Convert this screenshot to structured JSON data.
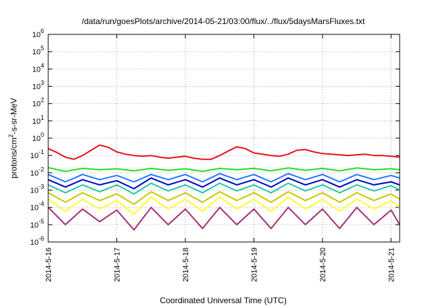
{
  "chart_data": {
    "type": "line",
    "title": "/data/run/goesPlots/archive/2014-05-21/03:00/flux/../flux/5daysMarsFluxes.txt",
    "xlabel": "Coordinated Universal Time (UTC)",
    "ylabel": "protons/cm2-s-sr-MeV",
    "yscale": "log",
    "ylim": [
      1e-06,
      1000000.0
    ],
    "y_tick_exponents": [
      -6,
      -5,
      -4,
      -3,
      -2,
      -1,
      0,
      1,
      2,
      3,
      4,
      5,
      6
    ],
    "xlim": [
      "2014-05-16",
      "2014-05-21 03:00"
    ],
    "x_ticks": [
      "2014-5-16",
      "2014-5-17",
      "2014-5-18",
      "2014-5-19",
      "2014-5-20",
      "2014-5-21"
    ],
    "grid": true,
    "series": [
      {
        "color": "#e8101a",
        "x": [
          "2014-05-16 00:00",
          "2014-05-16 03:00",
          "2014-05-16 06:00",
          "2014-05-16 09:00",
          "2014-05-16 12:00",
          "2014-05-16 15:00",
          "2014-05-16 18:00",
          "2014-05-16 21:00",
          "2014-05-17 00:00",
          "2014-05-17 03:00",
          "2014-05-17 06:00",
          "2014-05-17 09:00",
          "2014-05-17 12:00",
          "2014-05-17 15:00",
          "2014-05-17 18:00",
          "2014-05-17 21:00",
          "2014-05-18 00:00",
          "2014-05-18 03:00",
          "2014-05-18 06:00",
          "2014-05-18 09:00",
          "2014-05-18 12:00",
          "2014-05-18 15:00",
          "2014-05-18 18:00",
          "2014-05-18 21:00",
          "2014-05-19 00:00",
          "2014-05-19 03:00",
          "2014-05-19 06:00",
          "2014-05-19 09:00",
          "2014-05-19 12:00",
          "2014-05-19 15:00",
          "2014-05-19 18:00",
          "2014-05-19 21:00",
          "2014-05-20 00:00",
          "2014-05-20 03:00",
          "2014-05-20 06:00",
          "2014-05-20 09:00",
          "2014-05-20 12:00",
          "2014-05-20 15:00",
          "2014-05-20 18:00",
          "2014-05-20 21:00",
          "2014-05-21 00:00",
          "2014-05-21 03:00"
        ],
        "values": [
          0.25,
          0.15,
          0.08,
          0.06,
          0.1,
          0.2,
          0.4,
          0.3,
          0.16,
          0.12,
          0.1,
          0.09,
          0.1,
          0.08,
          0.07,
          0.08,
          0.09,
          0.07,
          0.06,
          0.06,
          0.1,
          0.18,
          0.32,
          0.25,
          0.14,
          0.12,
          0.1,
          0.09,
          0.12,
          0.2,
          0.22,
          0.16,
          0.13,
          0.12,
          0.11,
          0.1,
          0.11,
          0.12,
          0.1,
          0.1,
          0.09,
          0.08
        ]
      },
      {
        "color": "#20e020",
        "x": [
          "2014-05-16 00:00",
          "2014-05-16 06:00",
          "2014-05-16 12:00",
          "2014-05-16 18:00",
          "2014-05-17 00:00",
          "2014-05-17 06:00",
          "2014-05-17 12:00",
          "2014-05-17 18:00",
          "2014-05-18 00:00",
          "2014-05-18 06:00",
          "2014-05-18 12:00",
          "2014-05-18 18:00",
          "2014-05-19 00:00",
          "2014-05-19 06:00",
          "2014-05-19 12:00",
          "2014-05-19 18:00",
          "2014-05-20 00:00",
          "2014-05-20 06:00",
          "2014-05-20 12:00",
          "2014-05-20 18:00",
          "2014-05-21 00:00",
          "2014-05-21 03:00"
        ],
        "values": [
          0.02,
          0.012,
          0.018,
          0.015,
          0.017,
          0.013,
          0.018,
          0.014,
          0.017,
          0.012,
          0.018,
          0.015,
          0.018,
          0.013,
          0.019,
          0.014,
          0.018,
          0.013,
          0.019,
          0.015,
          0.017,
          0.015
        ]
      },
      {
        "color": "#1e78ff",
        "x": [
          "2014-05-16 00:00",
          "2014-05-16 06:00",
          "2014-05-16 12:00",
          "2014-05-16 18:00",
          "2014-05-17 00:00",
          "2014-05-17 06:00",
          "2014-05-17 12:00",
          "2014-05-17 18:00",
          "2014-05-18 00:00",
          "2014-05-18 06:00",
          "2014-05-18 12:00",
          "2014-05-18 18:00",
          "2014-05-19 00:00",
          "2014-05-19 06:00",
          "2014-05-19 12:00",
          "2014-05-19 18:00",
          "2014-05-20 00:00",
          "2014-05-20 06:00",
          "2014-05-20 12:00",
          "2014-05-20 18:00",
          "2014-05-21 00:00",
          "2014-05-21 03:00"
        ],
        "values": [
          0.008,
          0.003,
          0.008,
          0.004,
          0.007,
          0.003,
          0.008,
          0.004,
          0.008,
          0.003,
          0.009,
          0.004,
          0.008,
          0.003,
          0.009,
          0.004,
          0.008,
          0.003,
          0.008,
          0.004,
          0.007,
          0.005
        ]
      },
      {
        "color": "#0000c8",
        "x": [
          "2014-05-16 00:00",
          "2014-05-16 06:00",
          "2014-05-16 12:00",
          "2014-05-16 18:00",
          "2014-05-17 00:00",
          "2014-05-17 06:00",
          "2014-05-17 12:00",
          "2014-05-17 18:00",
          "2014-05-18 00:00",
          "2014-05-18 06:00",
          "2014-05-18 12:00",
          "2014-05-18 18:00",
          "2014-05-19 00:00",
          "2014-05-19 06:00",
          "2014-05-19 12:00",
          "2014-05-19 18:00",
          "2014-05-20 00:00",
          "2014-05-20 06:00",
          "2014-05-20 12:00",
          "2014-05-20 18:00",
          "2014-05-21 00:00",
          "2014-05-21 03:00"
        ],
        "values": [
          0.004,
          0.0015,
          0.004,
          0.002,
          0.0035,
          0.0012,
          0.005,
          0.002,
          0.004,
          0.0015,
          0.005,
          0.002,
          0.004,
          0.0015,
          0.005,
          0.002,
          0.004,
          0.0015,
          0.004,
          0.002,
          0.003,
          0.002
        ]
      },
      {
        "color": "#20c8a0",
        "x": [
          "2014-05-16 00:00",
          "2014-05-16 06:00",
          "2014-05-16 12:00",
          "2014-05-16 18:00",
          "2014-05-17 00:00",
          "2014-05-17 06:00",
          "2014-05-17 12:00",
          "2014-05-17 18:00",
          "2014-05-18 00:00",
          "2014-05-18 06:00",
          "2014-05-18 12:00",
          "2014-05-18 18:00",
          "2014-05-19 00:00",
          "2014-05-19 06:00",
          "2014-05-19 12:00",
          "2014-05-19 18:00",
          "2014-05-20 00:00",
          "2014-05-20 06:00",
          "2014-05-20 12:00",
          "2014-05-20 18:00",
          "2014-05-21 00:00",
          "2014-05-21 03:00"
        ],
        "values": [
          0.002,
          0.0007,
          0.002,
          0.0008,
          0.002,
          0.0006,
          0.0025,
          0.0009,
          0.002,
          0.0007,
          0.0025,
          0.0009,
          0.002,
          0.0007,
          0.0025,
          0.0009,
          0.002,
          0.0007,
          0.002,
          0.0009,
          0.0018,
          0.001
        ]
      },
      {
        "color": "#c8c800",
        "x": [
          "2014-05-16 00:00",
          "2014-05-16 06:00",
          "2014-05-16 12:00",
          "2014-05-16 18:00",
          "2014-05-17 00:00",
          "2014-05-17 06:00",
          "2014-05-17 12:00",
          "2014-05-17 18:00",
          "2014-05-18 00:00",
          "2014-05-18 06:00",
          "2014-05-18 12:00",
          "2014-05-18 18:00",
          "2014-05-19 00:00",
          "2014-05-19 06:00",
          "2014-05-19 12:00",
          "2014-05-19 18:00",
          "2014-05-20 00:00",
          "2014-05-20 06:00",
          "2014-05-20 12:00",
          "2014-05-20 18:00",
          "2014-05-21 00:00",
          "2014-05-21 03:00"
        ],
        "values": [
          0.0007,
          0.0002,
          0.0007,
          0.00025,
          0.0006,
          0.00015,
          0.0008,
          0.00025,
          0.0007,
          0.0002,
          0.0008,
          0.00025,
          0.0007,
          0.0002,
          0.0008,
          0.00025,
          0.0007,
          0.0002,
          0.0007,
          0.00025,
          0.0006,
          0.0003
        ]
      },
      {
        "color": "#ffff30",
        "x": [
          "2014-05-16 00:00",
          "2014-05-16 06:00",
          "2014-05-16 12:00",
          "2014-05-16 18:00",
          "2014-05-17 00:00",
          "2014-05-17 06:00",
          "2014-05-17 12:00",
          "2014-05-17 18:00",
          "2014-05-18 00:00",
          "2014-05-18 06:00",
          "2014-05-18 12:00",
          "2014-05-18 18:00",
          "2014-05-19 00:00",
          "2014-05-19 06:00",
          "2014-05-19 12:00",
          "2014-05-19 18:00",
          "2014-05-20 00:00",
          "2014-05-20 06:00",
          "2014-05-20 12:00",
          "2014-05-20 18:00",
          "2014-05-21 00:00",
          "2014-05-21 03:00"
        ],
        "values": [
          0.0003,
          6e-05,
          0.0003,
          8e-05,
          0.00025,
          4e-05,
          0.0004,
          8e-05,
          0.0003,
          6e-05,
          0.0004,
          8e-05,
          0.0003,
          6e-05,
          0.0004,
          8e-05,
          0.0003,
          6e-05,
          0.0003,
          8e-05,
          0.00025,
          0.0001
        ]
      },
      {
        "color": "#a03070",
        "x": [
          "2014-05-16 00:00",
          "2014-05-16 06:00",
          "2014-05-16 12:00",
          "2014-05-16 18:00",
          "2014-05-17 00:00",
          "2014-05-17 06:00",
          "2014-05-17 12:00",
          "2014-05-17 18:00",
          "2014-05-18 00:00",
          "2014-05-18 06:00",
          "2014-05-18 12:00",
          "2014-05-18 18:00",
          "2014-05-19 00:00",
          "2014-05-19 06:00",
          "2014-05-19 12:00",
          "2014-05-19 18:00",
          "2014-05-20 00:00",
          "2014-05-20 06:00",
          "2014-05-20 12:00",
          "2014-05-20 18:00",
          "2014-05-21 00:00",
          "2014-05-21 03:00"
        ],
        "values": [
          0.0001,
          1e-05,
          8e-05,
          1.5e-05,
          7e-05,
          5e-06,
          0.0001,
          1e-05,
          8e-05,
          6e-06,
          0.0001,
          1e-05,
          8e-05,
          6e-06,
          0.0001,
          1e-05,
          8e-05,
          6e-06,
          0.0001,
          1e-05,
          7e-05,
          1e-05
        ]
      }
    ]
  }
}
